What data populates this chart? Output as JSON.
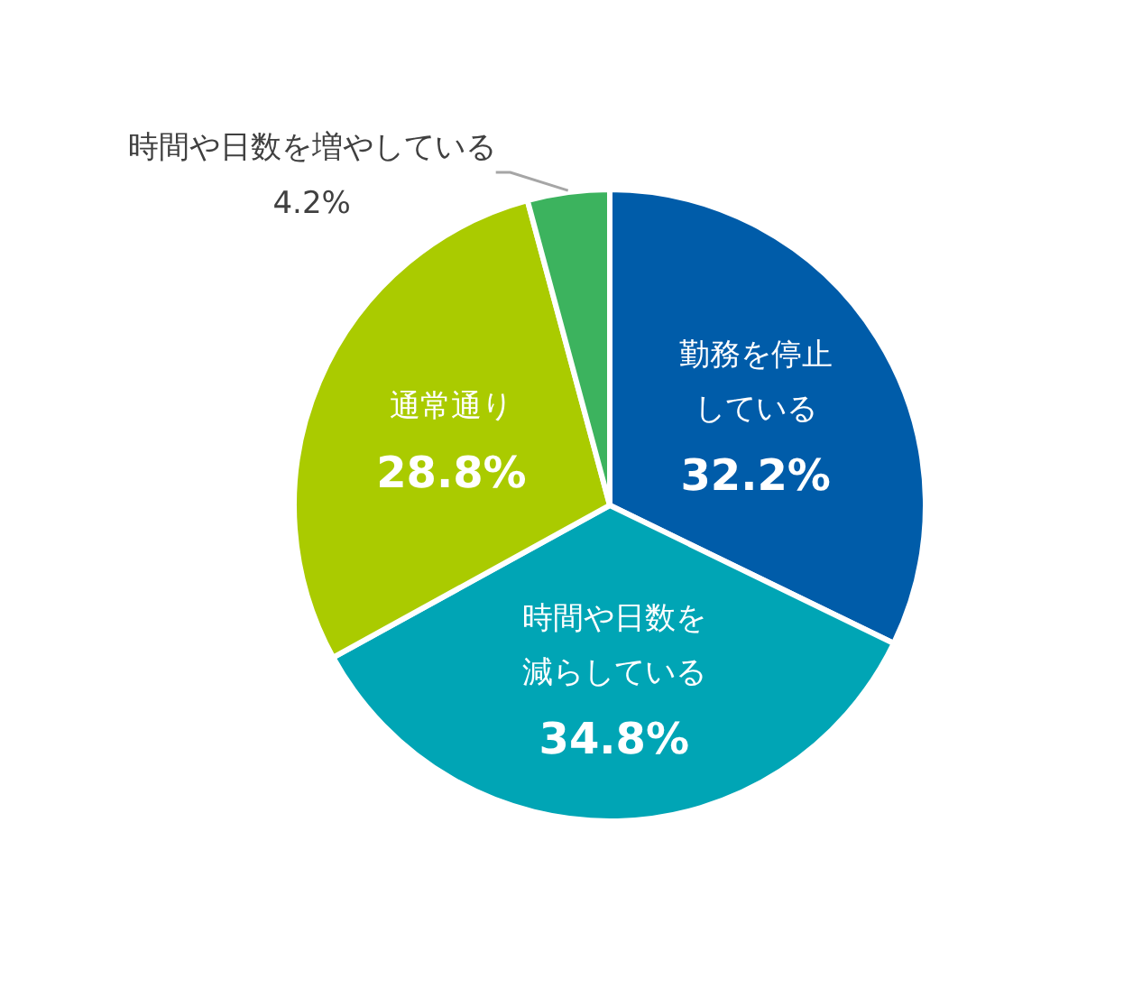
{
  "chart_data": {
    "type": "pie",
    "categories": [
      "勤務を停止している",
      "時間や日数を減らしている",
      "通常通り",
      "時間や日数を増やしている"
    ],
    "values": [
      32.2,
      34.8,
      28.8,
      4.2
    ],
    "colors": [
      "#005ca9",
      "#00a5b5",
      "#aacb00",
      "#3cb35e"
    ],
    "value_labels": [
      "32.2%",
      "34.8%",
      "28.8%",
      "4.2%"
    ]
  }
}
